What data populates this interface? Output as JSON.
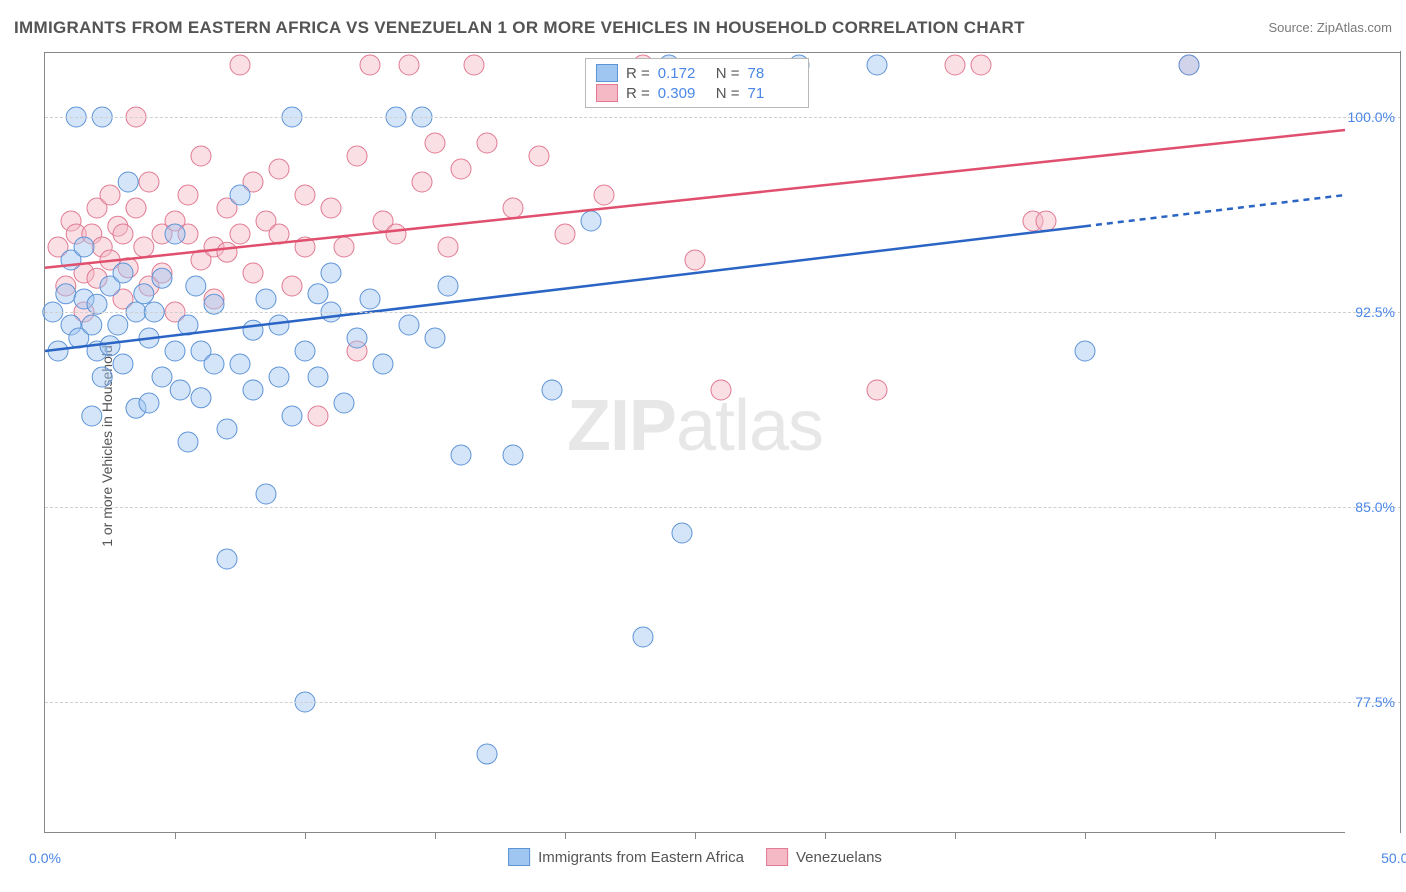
{
  "header": {
    "title": "IMMIGRANTS FROM EASTERN AFRICA VS VENEZUELAN 1 OR MORE VEHICLES IN HOUSEHOLD CORRELATION CHART",
    "source_label": "Source: ",
    "source_name": "ZipAtlas.com"
  },
  "axes": {
    "y_label": "1 or more Vehicles in Household",
    "x_min": 0.0,
    "x_max": 50.0,
    "x_min_label": "0.0%",
    "x_max_label": "50.0%",
    "y_min": 72.5,
    "y_max": 102.5,
    "y_grid": [
      {
        "v": 77.5,
        "label": "77.5%"
      },
      {
        "v": 85.0,
        "label": "85.0%"
      },
      {
        "v": 92.5,
        "label": "92.5%"
      },
      {
        "v": 100.0,
        "label": "100.0%"
      }
    ],
    "x_ticks": [
      5,
      10,
      15,
      20,
      25,
      30,
      35,
      40,
      45
    ]
  },
  "watermark": {
    "bold": "ZIP",
    "light": "atlas"
  },
  "series": {
    "a": {
      "name": "Immigrants from Eastern Africa",
      "fill": "#9fc5f1",
      "stroke": "#5e94d6",
      "line_color": "#2a64c4",
      "r_label": "R =",
      "r_value": "0.172",
      "n_label": "N =",
      "n_value": "78",
      "trend": {
        "x1": 0.0,
        "y1": 91.0,
        "x2": 40.0,
        "y2": 95.8,
        "x2_dash": 50.0,
        "y2_dash": 97.0
      },
      "points": [
        [
          0.3,
          92.5
        ],
        [
          0.5,
          91.0
        ],
        [
          0.8,
          93.2
        ],
        [
          1.0,
          92.0
        ],
        [
          1.0,
          94.5
        ],
        [
          1.2,
          100.0
        ],
        [
          1.3,
          91.5
        ],
        [
          1.5,
          93.0
        ],
        [
          1.5,
          95.0
        ],
        [
          1.8,
          92.0
        ],
        [
          1.8,
          88.5
        ],
        [
          2.0,
          92.8
        ],
        [
          2.0,
          91.0
        ],
        [
          2.2,
          90.0
        ],
        [
          2.2,
          100.0
        ],
        [
          2.5,
          93.5
        ],
        [
          2.5,
          91.2
        ],
        [
          2.8,
          92.0
        ],
        [
          3.0,
          94.0
        ],
        [
          3.0,
          90.5
        ],
        [
          3.2,
          97.5
        ],
        [
          3.5,
          92.5
        ],
        [
          3.5,
          88.8
        ],
        [
          3.8,
          93.2
        ],
        [
          4.0,
          91.5
        ],
        [
          4.0,
          89.0
        ],
        [
          4.2,
          92.5
        ],
        [
          4.5,
          90.0
        ],
        [
          4.5,
          93.8
        ],
        [
          5.0,
          91.0
        ],
        [
          5.0,
          95.5
        ],
        [
          5.2,
          89.5
        ],
        [
          5.5,
          92.0
        ],
        [
          5.5,
          87.5
        ],
        [
          5.8,
          93.5
        ],
        [
          6.0,
          91.0
        ],
        [
          6.0,
          89.2
        ],
        [
          6.5,
          90.5
        ],
        [
          6.5,
          92.8
        ],
        [
          7.0,
          88.0
        ],
        [
          7.0,
          83.0
        ],
        [
          7.5,
          90.5
        ],
        [
          7.5,
          97.0
        ],
        [
          8.0,
          91.8
        ],
        [
          8.0,
          89.5
        ],
        [
          8.5,
          93.0
        ],
        [
          8.5,
          85.5
        ],
        [
          9.0,
          92.0
        ],
        [
          9.0,
          90.0
        ],
        [
          9.5,
          100.0
        ],
        [
          9.5,
          88.5
        ],
        [
          10.0,
          91.0
        ],
        [
          10.0,
          77.5
        ],
        [
          10.5,
          93.2
        ],
        [
          10.5,
          90.0
        ],
        [
          11.0,
          92.5
        ],
        [
          11.0,
          94.0
        ],
        [
          11.5,
          89.0
        ],
        [
          12.0,
          91.5
        ],
        [
          12.5,
          93.0
        ],
        [
          13.0,
          90.5
        ],
        [
          13.5,
          100.0
        ],
        [
          14.0,
          92.0
        ],
        [
          14.5,
          100.0
        ],
        [
          15.0,
          91.5
        ],
        [
          15.5,
          93.5
        ],
        [
          16.0,
          87.0
        ],
        [
          17.0,
          75.5
        ],
        [
          18.0,
          87.0
        ],
        [
          19.5,
          89.5
        ],
        [
          21.0,
          96.0
        ],
        [
          23.0,
          80.0
        ],
        [
          24.0,
          102.0
        ],
        [
          24.5,
          84.0
        ],
        [
          29.0,
          102.0
        ],
        [
          32.0,
          102.0
        ],
        [
          40.0,
          91.0
        ],
        [
          44.0,
          102.0
        ]
      ]
    },
    "b": {
      "name": "Venezuelans",
      "fill": "#f5b9c6",
      "stroke": "#e17a92",
      "line_color": "#e0506e",
      "r_label": "R =",
      "r_value": "0.309",
      "n_label": "N =",
      "n_value": "71",
      "trend": {
        "x1": 0.0,
        "y1": 94.2,
        "x2": 50.0,
        "y2": 99.5
      },
      "points": [
        [
          0.5,
          95.0
        ],
        [
          0.8,
          93.5
        ],
        [
          1.0,
          96.0
        ],
        [
          1.2,
          95.5
        ],
        [
          1.5,
          92.5
        ],
        [
          1.5,
          94.0
        ],
        [
          1.8,
          95.5
        ],
        [
          2.0,
          96.5
        ],
        [
          2.0,
          93.8
        ],
        [
          2.2,
          95.0
        ],
        [
          2.5,
          94.5
        ],
        [
          2.5,
          97.0
        ],
        [
          2.8,
          95.8
        ],
        [
          3.0,
          93.0
        ],
        [
          3.0,
          95.5
        ],
        [
          3.2,
          94.2
        ],
        [
          3.5,
          96.5
        ],
        [
          3.5,
          100.0
        ],
        [
          3.8,
          95.0
        ],
        [
          4.0,
          93.5
        ],
        [
          4.0,
          97.5
        ],
        [
          4.5,
          95.5
        ],
        [
          4.5,
          94.0
        ],
        [
          5.0,
          96.0
        ],
        [
          5.0,
          92.5
        ],
        [
          5.5,
          95.5
        ],
        [
          5.5,
          97.0
        ],
        [
          6.0,
          94.5
        ],
        [
          6.0,
          98.5
        ],
        [
          6.5,
          95.0
        ],
        [
          6.5,
          93.0
        ],
        [
          7.0,
          96.5
        ],
        [
          7.0,
          94.8
        ],
        [
          7.5,
          95.5
        ],
        [
          7.5,
          102.0
        ],
        [
          8.0,
          97.5
        ],
        [
          8.0,
          94.0
        ],
        [
          8.5,
          96.0
        ],
        [
          9.0,
          95.5
        ],
        [
          9.0,
          98.0
        ],
        [
          9.5,
          93.5
        ],
        [
          10.0,
          97.0
        ],
        [
          10.0,
          95.0
        ],
        [
          10.5,
          88.5
        ],
        [
          11.0,
          96.5
        ],
        [
          11.5,
          95.0
        ],
        [
          12.0,
          98.5
        ],
        [
          12.0,
          91.0
        ],
        [
          12.5,
          102.0
        ],
        [
          13.0,
          96.0
        ],
        [
          13.5,
          95.5
        ],
        [
          14.0,
          102.0
        ],
        [
          14.5,
          97.5
        ],
        [
          15.0,
          99.0
        ],
        [
          15.5,
          95.0
        ],
        [
          16.0,
          98.0
        ],
        [
          16.5,
          102.0
        ],
        [
          17.0,
          99.0
        ],
        [
          18.0,
          96.5
        ],
        [
          19.0,
          98.5
        ],
        [
          20.0,
          95.5
        ],
        [
          21.5,
          97.0
        ],
        [
          23.0,
          102.0
        ],
        [
          25.0,
          94.5
        ],
        [
          26.0,
          89.5
        ],
        [
          32.0,
          89.5
        ],
        [
          35.0,
          102.0
        ],
        [
          36.0,
          102.0
        ],
        [
          38.0,
          96.0
        ],
        [
          38.5,
          96.0
        ],
        [
          44.0,
          102.0
        ]
      ]
    }
  },
  "bottom_legend": {
    "a_label": "Immigrants from Eastern Africa",
    "b_label": "Venezuelans"
  }
}
